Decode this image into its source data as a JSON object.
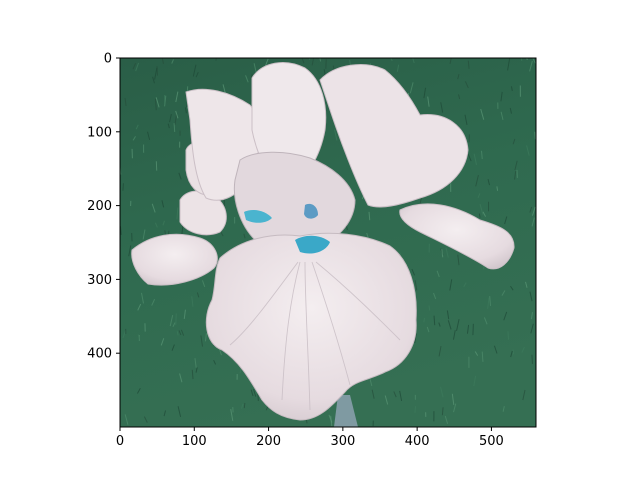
{
  "image": {
    "subject": "white bearded iris flower",
    "background": "green grass",
    "colors": {
      "grass_dark": "#1f4a37",
      "grass": "#2f6a4f",
      "grass_light": "#4f8c6c",
      "petal": "#e8dee2",
      "petal_shadow": "#c9bfc6",
      "petal_highlight": "#f6f1f2",
      "beard": "#3aa8c8",
      "stem": "#7f9aa2"
    },
    "extent": {
      "x": [
        0,
        560
      ],
      "y": [
        500,
        0
      ]
    }
  },
  "axes": {
    "x_ticks": [
      {
        "value": 0,
        "label": "0"
      },
      {
        "value": 100,
        "label": "100"
      },
      {
        "value": 200,
        "label": "200"
      },
      {
        "value": 300,
        "label": "300"
      },
      {
        "value": 400,
        "label": "400"
      },
      {
        "value": 500,
        "label": "500"
      }
    ],
    "y_ticks": [
      {
        "value": 0,
        "label": "0"
      },
      {
        "value": 100,
        "label": "100"
      },
      {
        "value": 200,
        "label": "200"
      },
      {
        "value": 300,
        "label": "300"
      },
      {
        "value": 400,
        "label": "400"
      }
    ]
  }
}
